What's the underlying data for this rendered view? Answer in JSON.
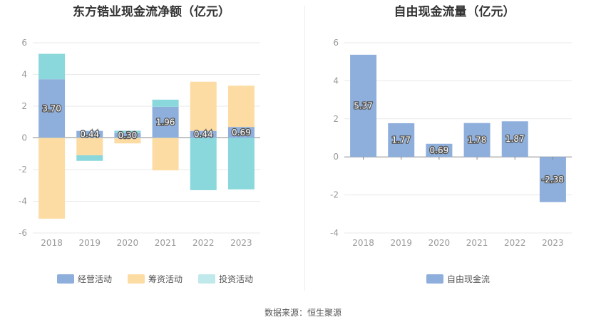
{
  "titles": {
    "left": "东方锆业现金流净额（亿元）",
    "right": "自由现金流量（亿元）"
  },
  "source": "数据来源：恒生聚源",
  "colors": {
    "operating": "#8eafdc",
    "financing": "#fddca4",
    "investing": "#8ad8dc",
    "free_cash_flow": "#8eafdc",
    "grid": "#e9e9e9",
    "axis_text": "#999999"
  },
  "chart_data": [
    {
      "type": "bar",
      "stacked": true,
      "title": "东方锆业现金流净额（亿元）",
      "categories": [
        "2018",
        "2019",
        "2020",
        "2021",
        "2022",
        "2023"
      ],
      "ylim": [
        -6,
        6
      ],
      "yticks": [
        -6,
        -4,
        -2,
        0,
        2,
        4,
        6
      ],
      "grid": true,
      "legend_position": "bottom",
      "series": [
        {
          "name": "经营活动",
          "values": [
            3.7,
            0.44,
            0.3,
            1.96,
            0.44,
            0.69
          ],
          "labels": [
            "3.70",
            "0.44",
            "0.30",
            "1.96",
            "0.44",
            "0.69"
          ]
        },
        {
          "name": "筹资活动",
          "values": [
            -5.1,
            -1.1,
            -0.35,
            -2.05,
            3.1,
            2.6
          ]
        },
        {
          "name": "投资活动",
          "values": [
            1.6,
            -0.35,
            0.15,
            0.45,
            -3.3,
            -3.25
          ]
        }
      ]
    },
    {
      "type": "bar",
      "title": "自由现金流量（亿元）",
      "categories": [
        "2018",
        "2019",
        "2020",
        "2021",
        "2022",
        "2023"
      ],
      "ylim": [
        -4,
        6
      ],
      "yticks": [
        -4,
        -2,
        0,
        2,
        4,
        6
      ],
      "grid": true,
      "legend_position": "bottom",
      "series": [
        {
          "name": "自由现金流",
          "values": [
            5.37,
            1.77,
            0.69,
            1.78,
            1.87,
            -2.38
          ],
          "labels": [
            "5.37",
            "1.77",
            "0.69",
            "1.78",
            "1.87",
            "-2.38"
          ]
        }
      ]
    }
  ]
}
